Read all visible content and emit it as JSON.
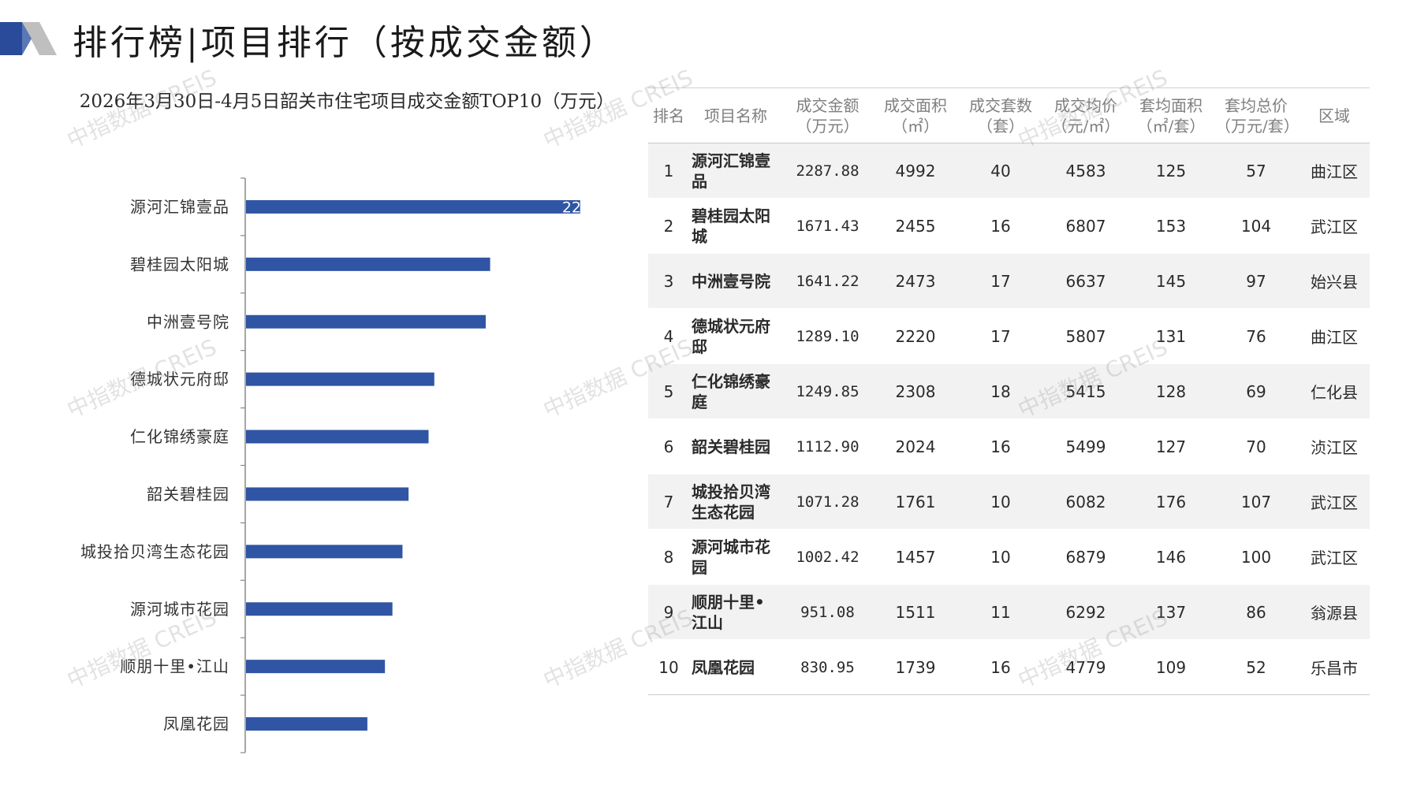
{
  "page_title": "排行榜|项目排行（按成交金额）",
  "watermark_text": "中指数据 CREIS",
  "colors": {
    "bar": "#2f55a4",
    "logo_dark": "#2a4a9a",
    "logo_gray": "#bfbfbf",
    "axis": "#888888"
  },
  "chart_data": {
    "type": "bar",
    "orientation": "horizontal",
    "title": "2026年3月30日-4月5日韶关市住宅项目成交金额TOP10（万元）",
    "categories": [
      "源河汇锦壹品",
      "碧桂园太阳城",
      "中洲壹号院",
      "德城状元府邸",
      "仁化锦绣豪庭",
      "韶关碧桂园",
      "城投拾贝湾生态花园",
      "源河城市花园",
      "顺朋十里•江山",
      "凤凰花园"
    ],
    "values": [
      2287.88,
      1671.43,
      1641.22,
      1289.1,
      1249.85,
      1112.9,
      1071.28,
      1002.42,
      951.08,
      830.95
    ],
    "data_label_partial": "22",
    "xlim": [
      0,
      2300
    ]
  },
  "table": {
    "headers": [
      {
        "line1": "排名",
        "line2": ""
      },
      {
        "line1": "项目名称",
        "line2": ""
      },
      {
        "line1": "成交金额",
        "line2": "（万元）"
      },
      {
        "line1": "成交面积",
        "line2": "（㎡）"
      },
      {
        "line1": "成交套数",
        "line2": "（套）"
      },
      {
        "line1": "成交均价",
        "line2": "（元/㎡）"
      },
      {
        "line1": "套均面积",
        "line2": "（㎡/套）"
      },
      {
        "line1": "套均总价",
        "line2": "（万元/套）"
      },
      {
        "line1": "区域",
        "line2": ""
      }
    ],
    "rows": [
      {
        "rank": "1",
        "name": "源河汇锦壹品",
        "amount": "2287.88",
        "area": "4992",
        "units": "40",
        "avg_price": "4583",
        "avg_area": "125",
        "avg_total": "57",
        "district": "曲江区"
      },
      {
        "rank": "2",
        "name": "碧桂园太阳城",
        "amount": "1671.43",
        "area": "2455",
        "units": "16",
        "avg_price": "6807",
        "avg_area": "153",
        "avg_total": "104",
        "district": "武江区"
      },
      {
        "rank": "3",
        "name": "中洲壹号院",
        "amount": "1641.22",
        "area": "2473",
        "units": "17",
        "avg_price": "6637",
        "avg_area": "145",
        "avg_total": "97",
        "district": "始兴县"
      },
      {
        "rank": "4",
        "name": "德城状元府邸",
        "amount": "1289.10",
        "area": "2220",
        "units": "17",
        "avg_price": "5807",
        "avg_area": "131",
        "avg_total": "76",
        "district": "曲江区"
      },
      {
        "rank": "5",
        "name": "仁化锦绣豪庭",
        "amount": "1249.85",
        "area": "2308",
        "units": "18",
        "avg_price": "5415",
        "avg_area": "128",
        "avg_total": "69",
        "district": "仁化县"
      },
      {
        "rank": "6",
        "name": "韶关碧桂园",
        "amount": "1112.90",
        "area": "2024",
        "units": "16",
        "avg_price": "5499",
        "avg_area": "127",
        "avg_total": "70",
        "district": "浈江区"
      },
      {
        "rank": "7",
        "name": "城投拾贝湾生态花园",
        "amount": "1071.28",
        "area": "1761",
        "units": "10",
        "avg_price": "6082",
        "avg_area": "176",
        "avg_total": "107",
        "district": "武江区"
      },
      {
        "rank": "8",
        "name": "源河城市花园",
        "amount": "1002.42",
        "area": "1457",
        "units": "10",
        "avg_price": "6879",
        "avg_area": "146",
        "avg_total": "100",
        "district": "武江区"
      },
      {
        "rank": "9",
        "name": "顺朋十里•江山",
        "amount": "951.08",
        "area": "1511",
        "units": "11",
        "avg_price": "6292",
        "avg_area": "137",
        "avg_total": "86",
        "district": "翁源县"
      },
      {
        "rank": "10",
        "name": "凤凰花园",
        "amount": "830.95",
        "area": "1739",
        "units": "16",
        "avg_price": "4779",
        "avg_area": "109",
        "avg_total": "52",
        "district": "乐昌市"
      }
    ]
  }
}
